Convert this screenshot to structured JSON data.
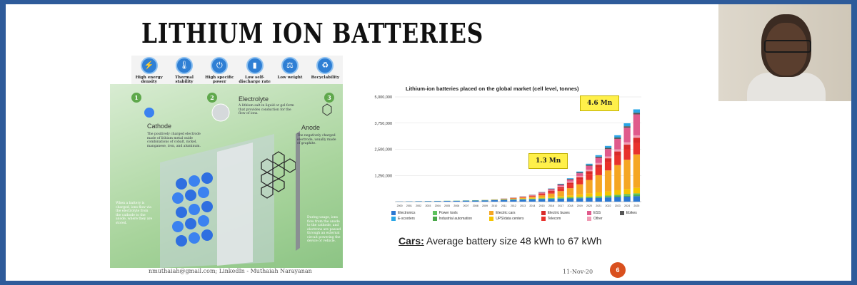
{
  "slide": {
    "title": "LITHIUM ION BATTERIES",
    "properties": [
      {
        "label": "High energy density",
        "icon": "energy-density-icon"
      },
      {
        "label": "Thermal stability",
        "icon": "thermometer-icon"
      },
      {
        "label": "High specific power",
        "icon": "power-icon"
      },
      {
        "label": "Low self-discharge rate",
        "icon": "battery-icon"
      },
      {
        "label": "Low weight",
        "icon": "weight-icon"
      },
      {
        "label": "Recyclability",
        "icon": "recycle-icon"
      }
    ],
    "illustration": {
      "steps": [
        "1",
        "2",
        "3"
      ],
      "cathode": {
        "heading": "Cathode",
        "text": "The positively charged electrode made of lithium metal oxide combinations of cobalt, nickel, manganese, iron, and aluminum."
      },
      "electrolyte": {
        "heading": "Electrolyte",
        "text": "A lithium salt in liquid or gel form that provides conduction for the flow of ions."
      },
      "anode": {
        "heading": "Anode",
        "text": "The negatively charged electrode, usually made of graphite."
      },
      "left_note": "When a battery is charged, ions flow via the electrolyte from the cathode to the anode, where they are stored.",
      "right_note": "During usage, ions flow from the anode to the cathode, and electrons are passed through an external circuit powering the device or vehicle."
    },
    "callouts": {
      "high": "4.6 Mn",
      "low": "1.3 Mn"
    },
    "cars": {
      "label": "Cars:",
      "text": "Average battery size 48 kWh to 67 kWh"
    },
    "footer": "nmuthaiah@gmail.com; LinkedIn - Muthaiah Narayanan",
    "date": "11-Nov-20",
    "page_number": "6",
    "colors": {
      "background": "#2e5b9a",
      "callout": "#fff04a",
      "page_badge": "#d9501e"
    }
  },
  "chart_data": {
    "type": "bar",
    "stacked": true,
    "title": "Lithium-ion batteries placed on the global market (cell level, tonnes)",
    "categories": [
      "2000",
      "2001",
      "2002",
      "2003",
      "2004",
      "2005",
      "2006",
      "2007",
      "2008",
      "2009",
      "2010",
      "2011",
      "2012",
      "2013",
      "2014",
      "2015",
      "2016",
      "2017",
      "2018",
      "2019",
      "2020",
      "2021",
      "2022",
      "2023",
      "2024",
      "2025"
    ],
    "yticks": [
      "5,000,000",
      "3,750,000",
      "2,500,000",
      "1,250,000"
    ],
    "ylim": [
      0,
      5000000
    ],
    "series": [
      {
        "name": "Electronics",
        "color": "#2b78d2",
        "values": [
          10000,
          15000,
          20000,
          25000,
          30000,
          35000,
          40000,
          48000,
          55000,
          60000,
          70000,
          80000,
          90000,
          100000,
          110000,
          120000,
          130000,
          140000,
          150000,
          160000,
          170000,
          180000,
          200000,
          220000,
          240000,
          260000
        ]
      },
      {
        "name": "Industrial automation",
        "color": "#4aa84a",
        "values": [
          0,
          0,
          0,
          0,
          0,
          0,
          0,
          0,
          0,
          2000,
          3000,
          4000,
          6000,
          8000,
          10000,
          12000,
          15000,
          18000,
          20000,
          22000,
          25000,
          28000,
          30000,
          35000,
          40000,
          45000
        ]
      },
      {
        "name": "Power tools",
        "color": "#5ec25e",
        "values": [
          2000,
          3000,
          4000,
          5000,
          6000,
          7000,
          8000,
          10000,
          12000,
          14000,
          16000,
          18000,
          20000,
          22000,
          25000,
          28000,
          30000,
          35000,
          40000,
          45000,
          50000,
          55000,
          60000,
          70000,
          80000,
          90000
        ]
      },
      {
        "name": "UPS/data centers",
        "color": "#f5c400",
        "values": [
          0,
          0,
          0,
          0,
          0,
          0,
          0,
          0,
          2000,
          4000,
          6000,
          10000,
          15000,
          20000,
          30000,
          40000,
          50000,
          70000,
          90000,
          120000,
          150000,
          180000,
          200000,
          220000,
          240000,
          260000
        ]
      },
      {
        "name": "Electric cars",
        "color": "#f5a623",
        "values": [
          0,
          0,
          0,
          0,
          0,
          0,
          0,
          0,
          0,
          1000,
          5000,
          15000,
          25000,
          40000,
          60000,
          100000,
          160000,
          240000,
          340000,
          480000,
          640000,
          820000,
          1000000,
          1200000,
          1400000,
          1600000
        ]
      },
      {
        "name": "Telecom",
        "color": "#e8322c",
        "values": [
          0,
          0,
          0,
          0,
          0,
          0,
          0,
          0,
          0,
          2000,
          5000,
          10000,
          15000,
          20000,
          30000,
          50000,
          80000,
          120000,
          170000,
          220000,
          280000,
          340000,
          400000,
          450000,
          500000,
          550000
        ]
      },
      {
        "name": "Electric buses",
        "color": "#d92a2a",
        "values": [
          0,
          0,
          0,
          0,
          0,
          0,
          0,
          0,
          0,
          0,
          0,
          2000,
          5000,
          10000,
          20000,
          40000,
          60000,
          80000,
          100000,
          120000,
          140000,
          160000,
          180000,
          200000,
          220000,
          240000
        ]
      },
      {
        "name": "Other",
        "color": "#f09bb4",
        "values": [
          0,
          0,
          0,
          0,
          0,
          0,
          0,
          0,
          0,
          0,
          1000,
          2000,
          4000,
          8000,
          12000,
          20000,
          30000,
          40000,
          50000,
          60000,
          70000,
          80000,
          90000,
          100000,
          110000,
          120000
        ]
      },
      {
        "name": "ESS",
        "color": "#e05a8c",
        "values": [
          0,
          0,
          0,
          0,
          0,
          0,
          0,
          0,
          0,
          0,
          0,
          2000,
          5000,
          10000,
          15000,
          25000,
          40000,
          60000,
          90000,
          130000,
          180000,
          250000,
          350000,
          500000,
          700000,
          1000000
        ]
      },
      {
        "name": "Ebikes",
        "color": "#555555",
        "values": [
          0,
          0,
          0,
          0,
          0,
          0,
          0,
          0,
          0,
          0,
          2000,
          5000,
          8000,
          10000,
          15000,
          20000,
          25000,
          30000,
          35000,
          40000,
          50000,
          55000,
          60000,
          65000,
          70000,
          80000
        ]
      },
      {
        "name": "E-scooters",
        "color": "#2aa6e6",
        "values": [
          0,
          0,
          0,
          0,
          0,
          0,
          0,
          0,
          0,
          0,
          0,
          0,
          0,
          0,
          0,
          5000,
          10000,
          20000,
          30000,
          40000,
          55000,
          70000,
          90000,
          110000,
          140000,
          160000
        ]
      }
    ]
  }
}
